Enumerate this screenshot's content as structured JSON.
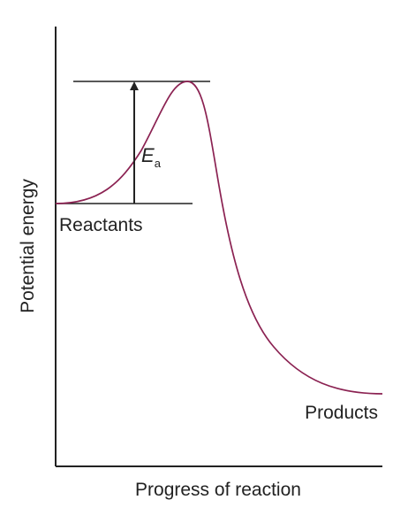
{
  "axes": {
    "x_label": "Progress of reaction",
    "y_label": "Potential energy"
  },
  "labels": {
    "reactants": "Reactants",
    "products": "Products",
    "activation_energy_symbol": "E",
    "activation_energy_subscript": "a"
  },
  "colors": {
    "curve": "#8b2252",
    "axes": "#222222",
    "text": "#222222"
  }
}
